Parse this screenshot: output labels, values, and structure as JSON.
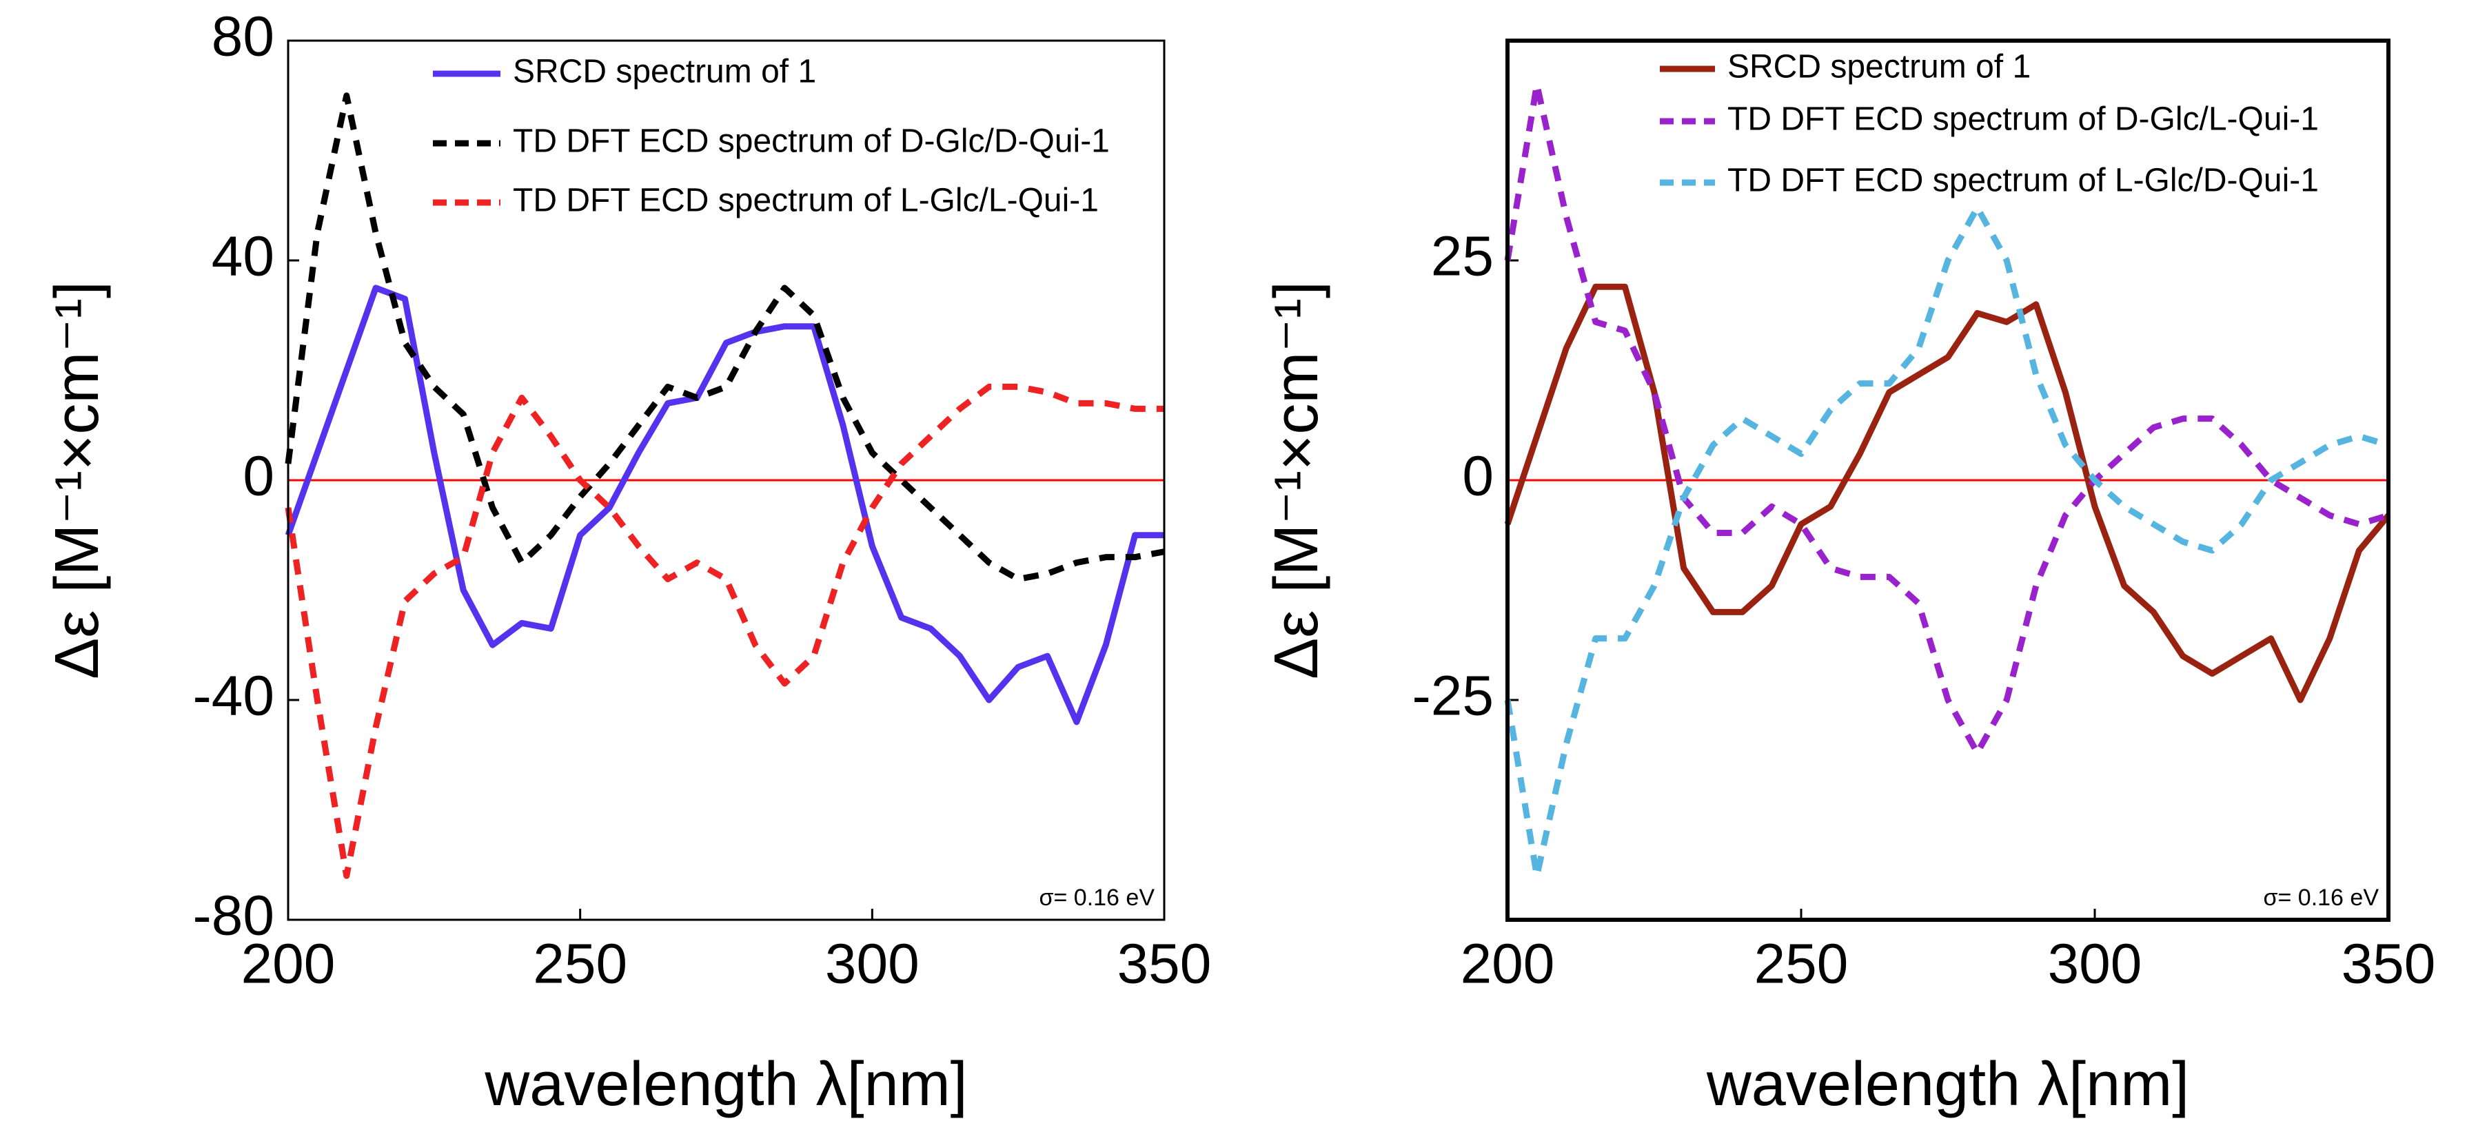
{
  "chart_data": [
    {
      "type": "line",
      "x": [
        200,
        205,
        210,
        215,
        220,
        225,
        230,
        235,
        240,
        245,
        250,
        255,
        260,
        265,
        270,
        275,
        280,
        285,
        290,
        295,
        300,
        305,
        310,
        315,
        320,
        325,
        330,
        335,
        340,
        345,
        350
      ],
      "series": [
        {
          "name": "SRCD spectrum of 1",
          "color": "#5533ee",
          "dashed": false,
          "values": [
            -10,
            5,
            20,
            35,
            33,
            5,
            -20,
            -30,
            -26,
            -27,
            -10,
            -5,
            5,
            14,
            15,
            25,
            27,
            28,
            28,
            10,
            -12,
            -25,
            -27,
            -32,
            -40,
            -34,
            -32,
            -44,
            -30,
            -10,
            -10
          ]
        },
        {
          "name": "TD DFT ECD spectrum of D-Glc/D-Qui-1",
          "color": "#000000",
          "dashed": true,
          "values": [
            3,
            45,
            70,
            45,
            25,
            17,
            12,
            -5,
            -15,
            -10,
            -3,
            3,
            10,
            17,
            15,
            17,
            27,
            35,
            30,
            15,
            5,
            0,
            -5,
            -10,
            -15,
            -18,
            -17,
            -15,
            -14,
            -14,
            -13
          ]
        },
        {
          "name": "TD DFT ECD spectrum of L-Glc/L-Qui-1",
          "color": "#ee2222",
          "dashed": true,
          "values": [
            -5,
            -40,
            -72,
            -45,
            -22,
            -17,
            -14,
            5,
            15,
            8,
            0,
            -5,
            -12,
            -18,
            -15,
            -18,
            -30,
            -37,
            -32,
            -15,
            -5,
            3,
            8,
            13,
            17,
            17,
            16,
            14,
            14,
            13,
            13
          ]
        }
      ],
      "xlim": [
        200,
        350
      ],
      "xticks": [
        200,
        250,
        300,
        350
      ],
      "ylim": [
        -80,
        80
      ],
      "yticks": [
        -80,
        -40,
        0,
        40,
        80
      ],
      "xlabel": "wavelength λ[nm]",
      "ylabel": "Δε [M⁻¹×cm⁻¹]",
      "annotation": "σ= 0.16 eV",
      "zero_line_color": "#ff0000"
    },
    {
      "type": "line",
      "x": [
        200,
        205,
        210,
        215,
        220,
        225,
        230,
        235,
        240,
        245,
        250,
        255,
        260,
        265,
        270,
        275,
        280,
        285,
        290,
        295,
        300,
        305,
        310,
        315,
        320,
        325,
        330,
        335,
        340,
        345,
        350
      ],
      "series": [
        {
          "name": "SRCD spectrum of 1",
          "color": "#992211",
          "dashed": false,
          "values": [
            -5,
            5,
            15,
            22,
            22,
            10,
            -10,
            -15,
            -15,
            -12,
            -5,
            -3,
            3,
            10,
            12,
            14,
            19,
            18,
            20,
            10,
            -3,
            -12,
            -15,
            -20,
            -22,
            -20,
            -18,
            -25,
            -18,
            -8,
            -4
          ]
        },
        {
          "name": "TD DFT ECD spectrum of D-Glc/L-Qui-1",
          "color": "#9922cc",
          "dashed": true,
          "values": [
            25,
            45,
            30,
            18,
            17,
            10,
            -2,
            -6,
            -6,
            -3,
            -5,
            -10,
            -11,
            -11,
            -14,
            -25,
            -31,
            -25,
            -12,
            -4,
            0,
            3,
            6,
            7,
            7,
            4,
            0,
            -2,
            -4,
            -5,
            -4
          ]
        },
        {
          "name": "TD DFT ECD spectrum of L-Glc/D-Qui-1",
          "color": "#55b4e0",
          "dashed": true,
          "values": [
            -25,
            -45,
            -30,
            -18,
            -18,
            -12,
            -2,
            4,
            7,
            5,
            3,
            8,
            11,
            11,
            15,
            25,
            31,
            25,
            12,
            4,
            0,
            -3,
            -5,
            -7,
            -8,
            -5,
            0,
            2,
            4,
            5,
            4
          ]
        }
      ],
      "xlim": [
        200,
        350
      ],
      "xticks": [
        200,
        250,
        300,
        350
      ],
      "ylim": [
        -50,
        50
      ],
      "yticks": [
        -25,
        0,
        25
      ],
      "xlabel": "wavelength λ[nm]",
      "ylabel": "Δε [M⁻¹×cm⁻¹]",
      "annotation": "σ= 0.16 eV",
      "zero_line_color": "#ff0000"
    }
  ]
}
